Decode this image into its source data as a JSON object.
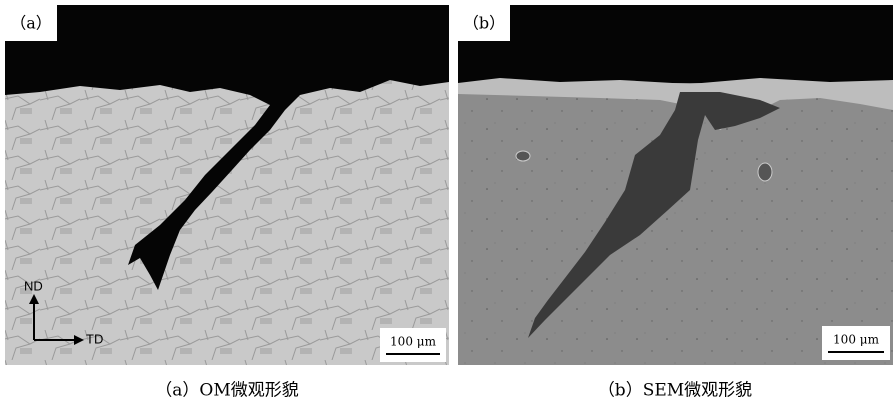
{
  "panels": [
    {
      "label": "（a）",
      "caption": "（a）OM微观形貌",
      "scale_bar": "100 μm",
      "axes": {
        "vertical": "ND",
        "horizontal": "TD"
      }
    },
    {
      "label": "（b）",
      "caption": "（b）SEM微观形貌",
      "scale_bar": "100 μm"
    }
  ]
}
